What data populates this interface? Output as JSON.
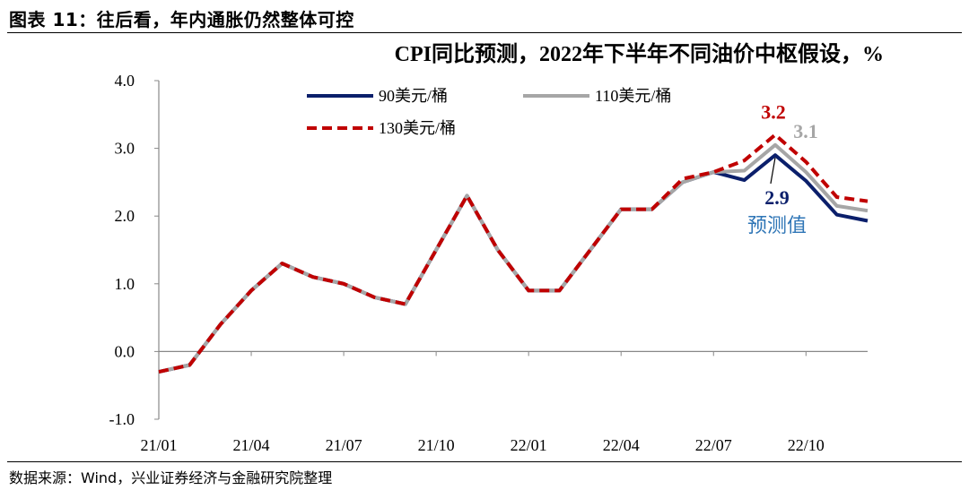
{
  "figure": {
    "title": "图表 11：往后看，年内通胀仍然整体可控",
    "source": "数据来源：Wind，兴业证券经济与金融研究院整理"
  },
  "chart_data": {
    "type": "line",
    "title": "CPI同比预测，2022年下半年不同油价中枢假设，%",
    "xlabel": "",
    "ylabel": "",
    "ylim": [
      -1.0,
      4.0
    ],
    "yticks": [
      "4.0",
      "3.0",
      "2.0",
      "1.0",
      "0.0",
      "-1.0"
    ],
    "xticks": [
      "21/01",
      "21/04",
      "21/07",
      "21/10",
      "22/01",
      "22/04",
      "22/07",
      "22/10"
    ],
    "x": [
      "21/01",
      "21/02",
      "21/03",
      "21/04",
      "21/05",
      "21/06",
      "21/07",
      "21/08",
      "21/09",
      "21/10",
      "21/11",
      "21/12",
      "22/01",
      "22/02",
      "22/03",
      "22/04",
      "22/05",
      "22/06",
      "22/07",
      "22/08",
      "22/09",
      "22/10",
      "22/11",
      "22/12"
    ],
    "grid": false,
    "legend": "top-left",
    "series": [
      {
        "name": "90美元/桶",
        "color": "#0b1f6b",
        "style": "solid",
        "values": [
          -0.3,
          -0.2,
          0.4,
          0.9,
          1.3,
          1.1,
          1.0,
          0.8,
          0.7,
          1.5,
          2.3,
          1.5,
          0.9,
          0.9,
          1.5,
          2.1,
          2.1,
          2.5,
          2.65,
          2.53,
          2.9,
          2.52,
          2.02,
          1.93
        ]
      },
      {
        "name": "110美元/桶",
        "color": "#a6a6a6",
        "style": "solid",
        "values": [
          -0.3,
          -0.2,
          0.4,
          0.9,
          1.3,
          1.1,
          1.0,
          0.8,
          0.7,
          1.5,
          2.3,
          1.5,
          0.9,
          0.9,
          1.5,
          2.1,
          2.1,
          2.5,
          2.65,
          2.67,
          3.05,
          2.65,
          2.15,
          2.08
        ]
      },
      {
        "name": "130美元/桶",
        "color": "#c00000",
        "style": "dashed",
        "values": [
          -0.3,
          -0.2,
          0.4,
          0.9,
          1.3,
          1.1,
          1.0,
          0.8,
          0.7,
          1.5,
          2.3,
          1.5,
          0.9,
          0.9,
          1.5,
          2.1,
          2.1,
          2.55,
          2.65,
          2.82,
          3.2,
          2.8,
          2.28,
          2.22
        ]
      }
    ],
    "annotations": [
      {
        "text": "3.2",
        "color": "#c00000"
      },
      {
        "text": "3.1",
        "color": "#a6a6a6"
      },
      {
        "text": "2.9",
        "color": "#0b1f6b"
      },
      {
        "text": "预测值",
        "color": "#2e75b6"
      }
    ]
  }
}
